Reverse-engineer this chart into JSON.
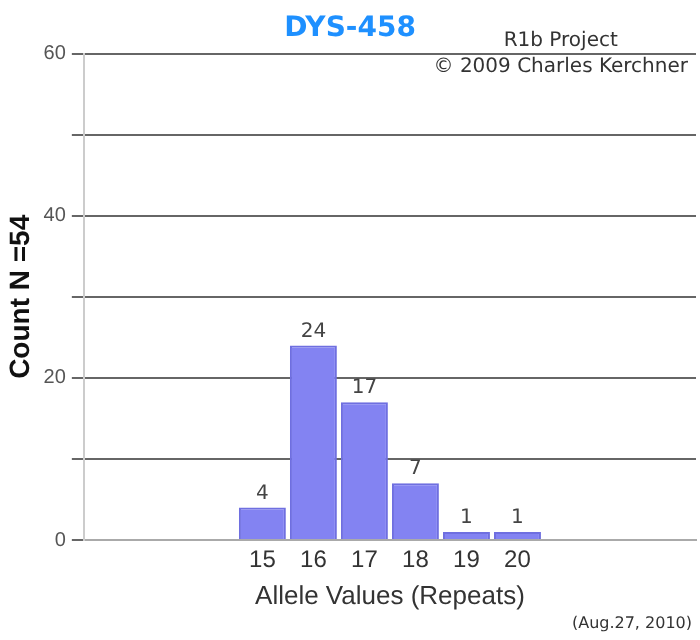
{
  "chart_data": {
    "type": "bar",
    "title": "DYS-458",
    "xlabel": "Allele Values (Repeats)",
    "ylabel": "Count N =54",
    "categories": [
      null,
      null,
      null,
      "15",
      "16",
      "17",
      "18",
      "19",
      "20",
      null,
      null,
      null
    ],
    "values": [
      null,
      null,
      null,
      4,
      24,
      17,
      7,
      1,
      1,
      null,
      null,
      null
    ],
    "color": "#8383f2",
    "ylim": [
      0,
      60
    ],
    "yticks": [
      0,
      {
        "value": 10,
        "label": null
      },
      20,
      {
        "value": 30,
        "label": null
      },
      40,
      {
        "value": 50,
        "label": null
      },
      60
    ],
    "grid": "y",
    "legend": false,
    "data_labels": true,
    "annotations": [
      "R1b Project",
      "© 2009 Charles Kerchner",
      "(Aug.27, 2010)"
    ]
  }
}
